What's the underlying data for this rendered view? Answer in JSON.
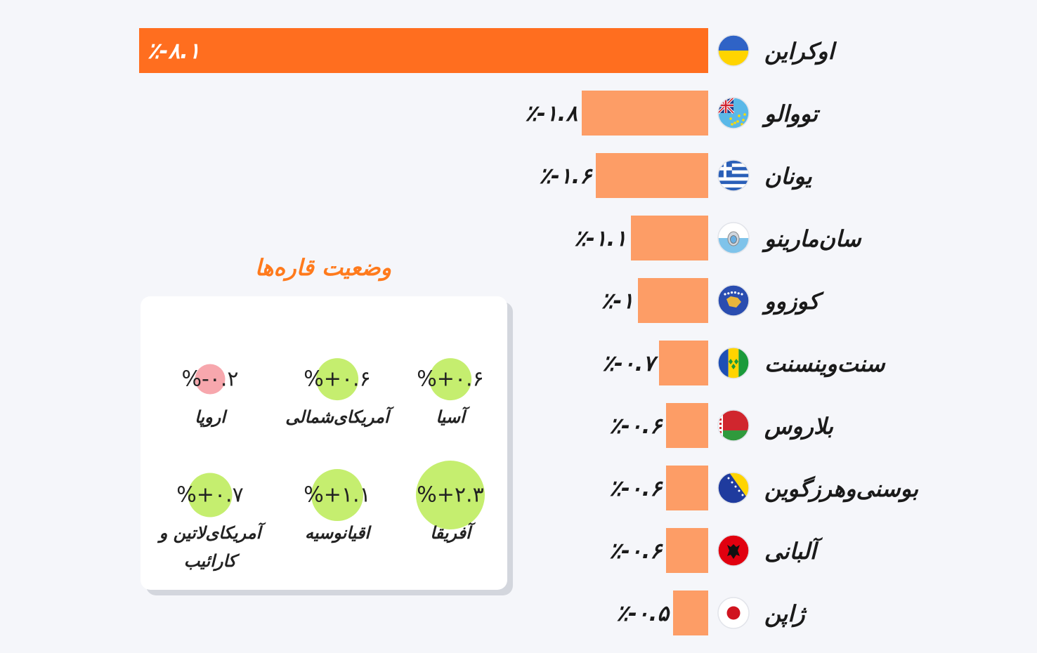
{
  "colors": {
    "highlight_bar": "#ff6e1f",
    "bar": "#fd9d66",
    "background": "#f5f6fa",
    "title": "#ff7a1c",
    "positive_circle": "#c5ee6f",
    "negative_circle": "#f7a7ad"
  },
  "chart_data": {
    "type": "bar",
    "orientation": "horizontal",
    "categories": [
      "اوکراین",
      "تووالو",
      "یونان",
      "سان‌مارینو",
      "کوزوو",
      "سنت‌وینسنت",
      "بلاروس",
      "بوسنی‌وهرزگوین",
      "آلبانی",
      "ژاپن"
    ],
    "values": [
      -8.1,
      -1.8,
      -1.6,
      -1.1,
      -1,
      -0.7,
      -0.6,
      -0.6,
      -0.6,
      -0.5
    ],
    "data_labels": [
      "٪-۸.۱",
      "٪-۱.۸",
      "٪-۱.۶",
      "٪-۱.۱",
      "٪-۱",
      "٪-۰.۷",
      "٪-۰.۶",
      "٪-۰.۶",
      "٪-۰.۶",
      "٪-۰.۵"
    ],
    "flags": [
      "ukraine-flag-icon",
      "tuvalu-flag-icon",
      "greece-flag-icon",
      "san-marino-flag-icon",
      "kosovo-flag-icon",
      "saint-vincent-flag-icon",
      "belarus-flag-icon",
      "bosnia-flag-icon",
      "albania-flag-icon",
      "japan-flag-icon"
    ],
    "highlight_index": 0,
    "xlim": [
      -8.1,
      0
    ],
    "grid": false,
    "legend": "none"
  },
  "continents": {
    "title": "وضعیت قاره‌ها",
    "items": [
      {
        "name": "آسیا",
        "label": "%+۰.۶",
        "value": 0.6
      },
      {
        "name": "آمریکای‌شمالی",
        "label": "%+۰.۶",
        "value": 0.6
      },
      {
        "name": "اروپا",
        "label": "%-۰.۲",
        "value": -0.2
      },
      {
        "name": "آفریقا",
        "label": "%+۲.۳",
        "value": 2.3
      },
      {
        "name": "اقیانوسیه",
        "label": "%+۱.۱",
        "value": 1.1
      },
      {
        "name": "آمریکای‌لاتین و کارائیب",
        "label": "%+۰.۷",
        "value": 0.7
      }
    ]
  }
}
